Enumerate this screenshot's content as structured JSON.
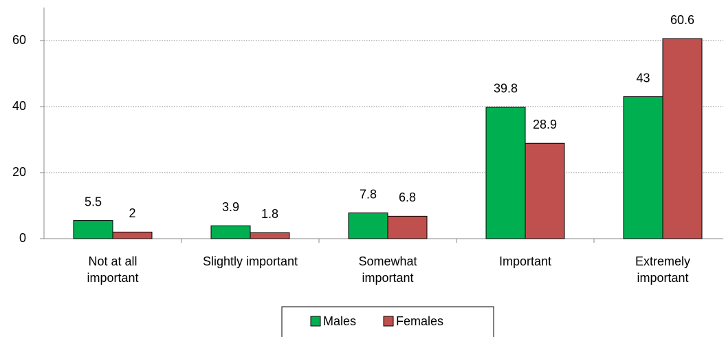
{
  "chart_data": {
    "type": "bar",
    "categories": [
      "Not at all\nimportant",
      "Slightly important",
      "Somewhat\nimportant",
      "Important",
      "Extremely\nimportant"
    ],
    "series": [
      {
        "name": "Males",
        "color": "#00b050",
        "values": [
          5.5,
          3.9,
          7.8,
          39.8,
          43
        ]
      },
      {
        "name": "Females",
        "color": "#c0504d",
        "values": [
          2,
          1.8,
          6.8,
          28.9,
          60.6
        ]
      }
    ],
    "ylim": [
      0,
      70
    ],
    "yticks": [
      0,
      20,
      40,
      60
    ],
    "grid": true,
    "legend": "bottom"
  }
}
